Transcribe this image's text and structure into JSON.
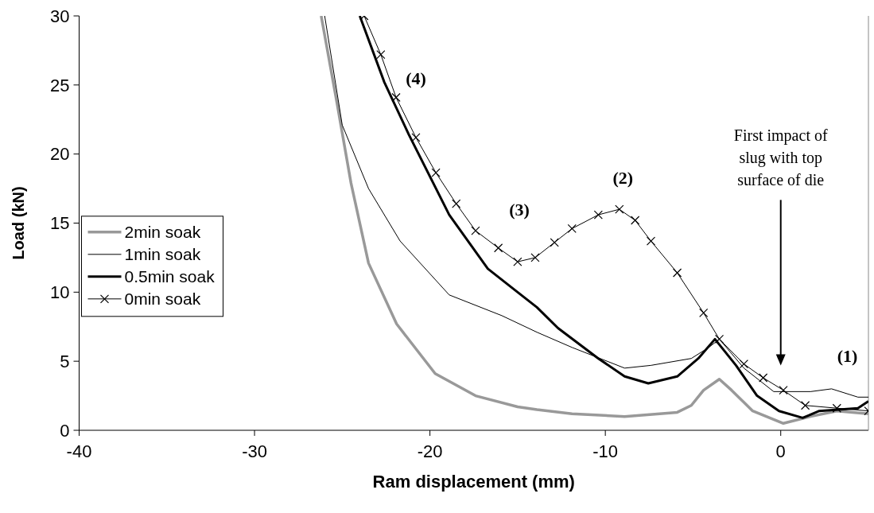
{
  "chart_data": {
    "type": "line",
    "xlabel": "Ram displacement (mm)",
    "ylabel": "Load (kN)",
    "xlim": [
      -40,
      5
    ],
    "xticks": [
      -40,
      -30,
      -20,
      -10,
      0
    ],
    "ylim": [
      0,
      30
    ],
    "yticks": [
      0,
      5,
      10,
      15,
      20,
      25,
      30
    ],
    "grid": false,
    "legend": "left",
    "line_style": "solid",
    "series": [
      {
        "name": "2min soak",
        "color": "#999999",
        "x": [
          -26.2,
          -25.3,
          -24.5,
          -23.5,
          -21.9,
          -19.7,
          -17.4,
          -15,
          -13.9,
          -11.9,
          -8.9,
          -5.9,
          -5.1,
          -4.4,
          -3.5,
          -2.8,
          -1.6,
          0.15,
          1.7,
          3.2,
          5
        ],
        "values": [
          30,
          23.7,
          17.9,
          12.1,
          7.7,
          4.1,
          2.5,
          1.7,
          1.5,
          1.2,
          1.0,
          1.3,
          1.8,
          2.9,
          3.7,
          2.9,
          1.4,
          0.5,
          1.0,
          1.4,
          1.2
        ]
      },
      {
        "name": "1min soak",
        "color": "#000000",
        "x": [
          -26.0,
          -25.0,
          -23.5,
          -21.7,
          -18.9,
          -15.9,
          -13.9,
          -11.9,
          -8.9,
          -7.4,
          -5.1,
          -4.1,
          -3.5,
          -2.1,
          -0.4,
          1.7,
          2.9,
          4.4,
          5
        ],
        "values": [
          30,
          22.1,
          17.5,
          13.7,
          9.8,
          8.3,
          7.1,
          6.0,
          4.5,
          4.7,
          5.2,
          6.0,
          6.6,
          4.5,
          2.8,
          2.8,
          3.0,
          2.4,
          2.4
        ]
      },
      {
        "name": "0.5min soak",
        "color": "#000000",
        "x": [
          -24.0,
          -22.6,
          -21.2,
          -18.9,
          -16.7,
          -15.0,
          -13.9,
          -12.7,
          -10.4,
          -8.9,
          -7.55,
          -5.9,
          -4.7,
          -3.75,
          -2.55,
          -1.35,
          -0.1,
          1.25,
          2.2,
          4.4,
          5
        ],
        "values": [
          30,
          25.2,
          21.4,
          15.6,
          11.7,
          10.0,
          8.9,
          7.4,
          5.2,
          3.9,
          3.4,
          3.9,
          5.2,
          6.6,
          4.7,
          2.5,
          1.4,
          0.9,
          1.4,
          1.6,
          2.1
        ]
      },
      {
        "name": "0min soak",
        "color": "#000000",
        "marker": "cross",
        "x": [
          -23.75,
          -22.8,
          -21.93,
          -20.8,
          -19.66,
          -18.5,
          -17.4,
          -16.1,
          -15.0,
          -14.0,
          -12.9,
          -11.9,
          -10.4,
          -9.2,
          -8.3,
          -7.4,
          -5.9,
          -4.4,
          -3.5,
          -2.1,
          -1,
          0.15,
          1.4,
          3.2,
          5
        ],
        "values": [
          30,
          27.2,
          24.1,
          21.2,
          18.65,
          16.4,
          14.45,
          13.2,
          12.2,
          12.5,
          13.6,
          14.6,
          15.6,
          16.0,
          15.2,
          13.7,
          11.4,
          8.5,
          6.6,
          4.8,
          3.8,
          2.9,
          1.8,
          1.6,
          1.4
        ]
      }
    ],
    "annotations": [
      "First impact of slug with top surface of die",
      "(1)",
      "(2)",
      "(3)",
      "(4)"
    ]
  }
}
